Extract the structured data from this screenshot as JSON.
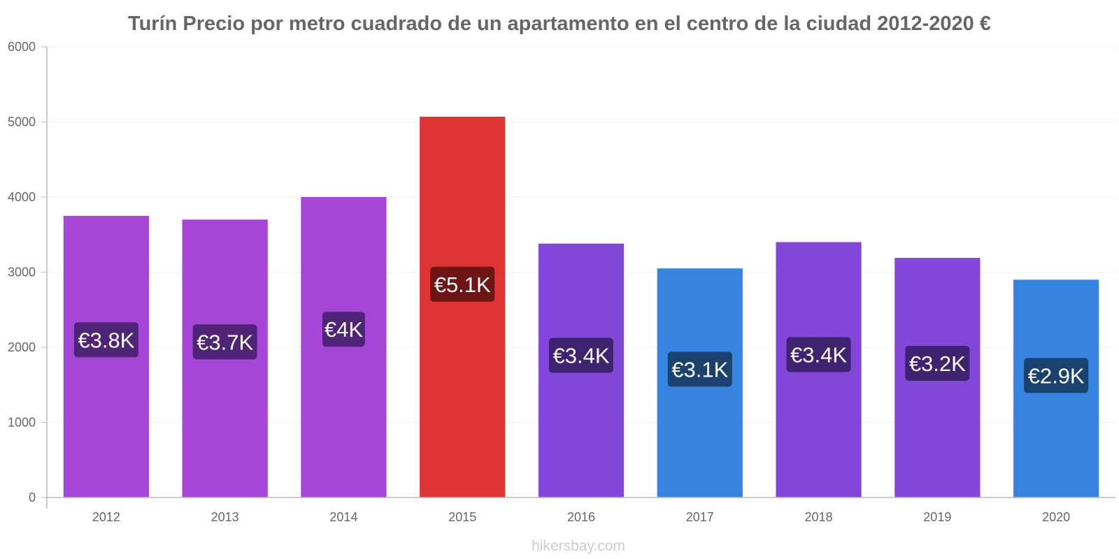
{
  "footer": {
    "watermark": "hikersbay.com"
  },
  "chart_data": {
    "type": "bar",
    "title": "Turín Precio por metro cuadrado de un apartamento en el centro de la ciudad 2012-2020 €",
    "xlabel": "",
    "ylabel": "",
    "ylim": [
      0,
      6000
    ],
    "yticks": [
      0,
      1000,
      2000,
      3000,
      4000,
      5000,
      6000
    ],
    "grid": true,
    "categories": [
      "2012",
      "2013",
      "2014",
      "2015",
      "2016",
      "2017",
      "2018",
      "2019",
      "2020"
    ],
    "values": [
      3750,
      3700,
      4000,
      5070,
      3380,
      3050,
      3400,
      3190,
      2900
    ],
    "data_labels": [
      "€3.8K",
      "€3.7K",
      "€4K",
      "€5.1K",
      "€3.4K",
      "€3.1K",
      "€3.4K",
      "€3.2K",
      "€2.9K"
    ],
    "bar_colors": [
      "#a646d8",
      "#a646d8",
      "#a646d8",
      "#e03434",
      "#8246d8",
      "#3684e0",
      "#8246d8",
      "#8246d8",
      "#3684e0"
    ],
    "label_bg_colors": [
      "#4e2477",
      "#4e2477",
      "#4e2477",
      "#6e1515",
      "#3e2370",
      "#1b426f",
      "#3e2370",
      "#3e2370",
      "#1b426f"
    ]
  }
}
